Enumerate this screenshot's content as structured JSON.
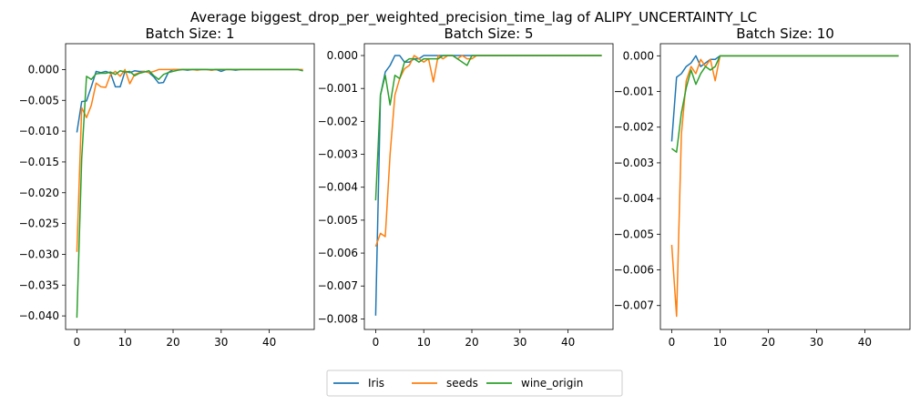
{
  "suptitle": "Average biggest_drop_per_weighted_precision_time_lag of ALIPY_UNCERTAINTY_LC",
  "legend": {
    "placement": "bottom-center",
    "entries": [
      {
        "name": "Iris",
        "color": "#1f77b4"
      },
      {
        "name": "seeds",
        "color": "#ff7f0e"
      },
      {
        "name": "wine_origin",
        "color": "#2ca02c"
      }
    ]
  },
  "chart_data": [
    {
      "type": "line",
      "title": "Batch Size: 1",
      "xlabel": "",
      "ylabel": "",
      "xlim": [
        -2.35,
        49.35
      ],
      "ylim": [
        -0.0422,
        0.0042
      ],
      "xticks": [
        0,
        10,
        20,
        30,
        40
      ],
      "yticks": [
        0.0,
        -0.005,
        -0.01,
        -0.015,
        -0.02,
        -0.025,
        -0.03,
        -0.035,
        -0.04
      ],
      "ytick_labels": [
        "0.000",
        "−0.005",
        "−0.010",
        "−0.015",
        "−0.020",
        "−0.025",
        "−0.030",
        "−0.035",
        "−0.040"
      ],
      "grid": false,
      "series": [
        {
          "name": "Iris",
          "color": "#1f77b4",
          "x": [
            0,
            1,
            2,
            3,
            4,
            5,
            6,
            7,
            8,
            9,
            10,
            11,
            12,
            13,
            14,
            15,
            16,
            17,
            18,
            19,
            20,
            21,
            22,
            23,
            24,
            25,
            26,
            27,
            28,
            29,
            30,
            31,
            32,
            33,
            34,
            35,
            36,
            37,
            38,
            39,
            40,
            41,
            42,
            43,
            44,
            45,
            46,
            47
          ],
          "y": [
            -0.0102,
            -0.0052,
            -0.0051,
            -0.0028,
            -0.0003,
            -0.0005,
            -0.0003,
            -0.0006,
            -0.0028,
            -0.0028,
            -0.0003,
            -0.0005,
            -0.0002,
            -0.0003,
            -0.0003,
            -0.0005,
            -0.0012,
            -0.0022,
            -0.0021,
            -0.0005,
            0,
            0,
            0,
            -0.0001,
            0,
            0,
            0,
            0,
            -0.0001,
            0,
            -0.0003,
            0,
            0,
            -0.0001,
            0,
            0,
            0,
            0,
            0,
            0,
            0,
            0,
            0,
            0,
            0,
            0,
            0,
            -0.0002
          ]
        },
        {
          "name": "seeds",
          "color": "#ff7f0e",
          "x": [
            0,
            1,
            2,
            3,
            4,
            5,
            6,
            7,
            8,
            9,
            10,
            11,
            12,
            13,
            14,
            15,
            16,
            17,
            18,
            19,
            20,
            21,
            22,
            23,
            24,
            25,
            26,
            27,
            28,
            29,
            30,
            31,
            32,
            33,
            34,
            35,
            36,
            37,
            38,
            39,
            40,
            41,
            42,
            43,
            44,
            45,
            46,
            47
          ],
          "y": [
            -0.0296,
            -0.0062,
            -0.0078,
            -0.0058,
            -0.0022,
            -0.0028,
            -0.0029,
            -0.0008,
            -0.0003,
            -0.0011,
            0,
            -0.0023,
            -0.0008,
            -0.0005,
            -0.0003,
            -0.0005,
            -0.0003,
            0,
            0,
            0,
            0,
            0,
            0,
            0,
            0,
            -0.0001,
            0,
            0,
            -0.0001,
            0,
            0,
            0,
            0,
            0,
            0,
            0,
            0,
            0,
            0,
            0,
            0,
            0,
            0,
            0,
            0,
            0,
            0,
            0
          ]
        },
        {
          "name": "wine_origin",
          "color": "#2ca02c",
          "x": [
            0,
            1,
            2,
            3,
            4,
            5,
            6,
            7,
            8,
            9,
            10,
            11,
            12,
            13,
            14,
            15,
            16,
            17,
            18,
            19,
            20,
            21,
            22,
            23,
            24,
            25,
            26,
            27,
            28,
            29,
            30,
            31,
            32,
            33,
            34,
            35,
            36,
            37,
            38,
            39,
            40,
            41,
            42,
            43,
            44,
            45,
            46,
            47
          ],
          "y": [
            -0.0403,
            -0.0145,
            -0.0011,
            -0.0016,
            -0.0007,
            -0.0006,
            -0.0006,
            -0.0004,
            -0.0008,
            -0.0002,
            -0.0004,
            -0.0003,
            -0.001,
            -0.0006,
            -0.0004,
            -0.0002,
            -0.001,
            -0.0016,
            -0.0008,
            -0.0005,
            -0.0003,
            -0.0001,
            0,
            0,
            0,
            0,
            0,
            0,
            0,
            0,
            0,
            0,
            0,
            0,
            0,
            0,
            0,
            0,
            0,
            0,
            0,
            0,
            0,
            0,
            0,
            0,
            0,
            -0.0002
          ]
        }
      ]
    },
    {
      "type": "line",
      "title": "Batch Size: 5",
      "xlabel": "",
      "ylabel": "",
      "xlim": [
        -2.35,
        49.35
      ],
      "ylim": [
        -0.00832,
        0.00036
      ],
      "xticks": [
        0,
        10,
        20,
        30,
        40
      ],
      "yticks": [
        0.0,
        -0.001,
        -0.002,
        -0.003,
        -0.004,
        -0.005,
        -0.006,
        -0.007,
        -0.008
      ],
      "ytick_labels": [
        "0.000",
        "−0.001",
        "−0.002",
        "−0.003",
        "−0.004",
        "−0.005",
        "−0.006",
        "−0.007",
        "−0.008"
      ],
      "grid": false,
      "series": [
        {
          "name": "Iris",
          "color": "#1f77b4",
          "x": [
            0,
            1,
            2,
            3,
            4,
            5,
            6,
            7,
            8,
            9,
            10,
            11,
            12,
            13,
            14,
            15,
            16,
            17,
            18,
            19,
            20,
            21,
            22,
            23,
            24,
            25,
            26,
            27,
            28,
            29,
            30,
            31,
            32,
            33,
            34,
            35,
            36,
            37,
            38,
            39,
            40,
            41,
            42,
            43,
            44,
            45,
            46,
            47
          ],
          "y": [
            -0.0079,
            -0.0012,
            -0.0005,
            -0.0003,
            0,
            0,
            -0.0002,
            -0.0002,
            -0.0001,
            -0.0001,
            0,
            0,
            0,
            0,
            0,
            0,
            0,
            0,
            0,
            0,
            0,
            0,
            0,
            0,
            0,
            0,
            0,
            0,
            0,
            0,
            0,
            0,
            0,
            0,
            0,
            0,
            0,
            0,
            0,
            0,
            0,
            0,
            0,
            0,
            0,
            0,
            0,
            0
          ]
        },
        {
          "name": "seeds",
          "color": "#ff7f0e",
          "x": [
            0,
            1,
            2,
            3,
            4,
            5,
            6,
            7,
            8,
            9,
            10,
            11,
            12,
            13,
            14,
            15,
            16,
            17,
            18,
            19,
            20,
            21,
            22,
            23,
            24,
            25,
            26,
            27,
            28,
            29,
            30,
            31,
            32,
            33,
            34,
            35,
            36,
            37,
            38,
            39,
            40,
            41,
            42,
            43,
            44,
            45,
            46,
            47
          ],
          "y": [
            -0.0058,
            -0.0054,
            -0.0055,
            -0.003,
            -0.0012,
            -0.0007,
            -0.0004,
            -0.0003,
            0,
            -0.0001,
            -0.0002,
            -0.0001,
            -0.0008,
            0,
            -0.0001,
            0,
            0,
            -0.0001,
            0,
            -0.0001,
            -0.0001,
            0,
            0,
            0,
            0,
            0,
            0,
            0,
            0,
            0,
            0,
            0,
            0,
            0,
            0,
            0,
            0,
            0,
            0,
            0,
            0,
            0,
            0,
            0,
            0,
            0,
            0,
            0
          ]
        },
        {
          "name": "wine_origin",
          "color": "#2ca02c",
          "x": [
            0,
            1,
            2,
            3,
            4,
            5,
            6,
            7,
            8,
            9,
            10,
            11,
            12,
            13,
            14,
            15,
            16,
            17,
            18,
            19,
            20,
            21,
            22,
            23,
            24,
            25,
            26,
            27,
            28,
            29,
            30,
            31,
            32,
            33,
            34,
            35,
            36,
            37,
            38,
            39,
            40,
            41,
            42,
            43,
            44,
            45,
            46,
            47
          ],
          "y": [
            -0.0044,
            -0.0012,
            -0.0006,
            -0.0015,
            -0.0006,
            -0.0007,
            -0.0002,
            -0.0001,
            -0.0001,
            -0.0002,
            -0.0001,
            -0.0001,
            -0.0001,
            -0.0001,
            0,
            0,
            0,
            -0.0001,
            -0.0002,
            -0.0003,
            0,
            0,
            0,
            0,
            0,
            0,
            0,
            0,
            0,
            0,
            0,
            0,
            0,
            0,
            0,
            0,
            0,
            0,
            0,
            0,
            0,
            0,
            0,
            0,
            0,
            0,
            0,
            0
          ]
        }
      ]
    },
    {
      "type": "line",
      "title": "Batch Size: 10",
      "xlabel": "",
      "ylabel": "",
      "xlim": [
        -2.35,
        49.35
      ],
      "ylim": [
        -0.00767,
        0.00034
      ],
      "xticks": [
        0,
        10,
        20,
        30,
        40
      ],
      "yticks": [
        0.0,
        -0.001,
        -0.002,
        -0.003,
        -0.004,
        -0.005,
        -0.006,
        -0.007
      ],
      "ytick_labels": [
        "0.000",
        "−0.001",
        "−0.002",
        "−0.003",
        "−0.004",
        "−0.005",
        "−0.006",
        "−0.007"
      ],
      "grid": false,
      "series": [
        {
          "name": "Iris",
          "color": "#1f77b4",
          "x": [
            0,
            1,
            2,
            3,
            4,
            5,
            6,
            7,
            8,
            9,
            10,
            11,
            12,
            13,
            14,
            15,
            16,
            17,
            18,
            19,
            20,
            21,
            22,
            23,
            24,
            25,
            26,
            27,
            28,
            29,
            30,
            31,
            32,
            33,
            34,
            35,
            36,
            37,
            38,
            39,
            40,
            41,
            42,
            43,
            44,
            45,
            46,
            47
          ],
          "y": [
            -0.0024,
            -0.0006,
            -0.0005,
            -0.0003,
            -0.0002,
            0,
            -0.0003,
            -0.0002,
            -0.0001,
            -0.0001,
            0,
            0,
            0,
            0,
            0,
            0,
            0,
            0,
            0,
            0,
            0,
            0,
            0,
            0,
            0,
            0,
            0,
            0,
            0,
            0,
            0,
            0,
            0,
            0,
            0,
            0,
            0,
            0,
            0,
            0,
            0,
            0,
            0,
            0,
            0,
            0,
            0,
            0
          ]
        },
        {
          "name": "seeds",
          "color": "#ff7f0e",
          "x": [
            0,
            1,
            2,
            3,
            4,
            5,
            6,
            7,
            8,
            9,
            10,
            11,
            12,
            13,
            14,
            15,
            16,
            17,
            18,
            19,
            20,
            21,
            22,
            23,
            24,
            25,
            26,
            27,
            28,
            29,
            30,
            31,
            32,
            33,
            34,
            35,
            36,
            37,
            38,
            39,
            40,
            41,
            42,
            43,
            44,
            45,
            46,
            47
          ],
          "y": [
            -0.0053,
            -0.0073,
            -0.0022,
            -0.0007,
            -0.0003,
            -0.0005,
            -0.0001,
            -0.0003,
            -0.0001,
            -0.0007,
            0,
            0,
            0,
            0,
            0,
            0,
            0,
            0,
            0,
            0,
            0,
            0,
            0,
            0,
            0,
            0,
            0,
            0,
            0,
            0,
            0,
            0,
            0,
            0,
            0,
            0,
            0,
            0,
            0,
            0,
            0,
            0,
            0,
            0,
            0,
            0,
            0,
            0
          ]
        },
        {
          "name": "wine_origin",
          "color": "#2ca02c",
          "x": [
            0,
            1,
            2,
            3,
            4,
            5,
            6,
            7,
            8,
            9,
            10,
            11,
            12,
            13,
            14,
            15,
            16,
            17,
            18,
            19,
            20,
            21,
            22,
            23,
            24,
            25,
            26,
            27,
            28,
            29,
            30,
            31,
            32,
            33,
            34,
            35,
            36,
            37,
            38,
            39,
            40,
            41,
            42,
            43,
            44,
            45,
            46,
            47
          ],
          "y": [
            -0.0026,
            -0.0027,
            -0.0016,
            -0.0009,
            -0.0004,
            -0.0008,
            -0.0005,
            -0.0003,
            -0.0004,
            -0.0003,
            0,
            0,
            0,
            0,
            0,
            0,
            0,
            0,
            0,
            0,
            0,
            0,
            0,
            0,
            0,
            0,
            0,
            0,
            0,
            0,
            0,
            0,
            0,
            0,
            0,
            0,
            0,
            0,
            0,
            0,
            0,
            0,
            0,
            0,
            0,
            0,
            0,
            0
          ]
        }
      ]
    }
  ]
}
